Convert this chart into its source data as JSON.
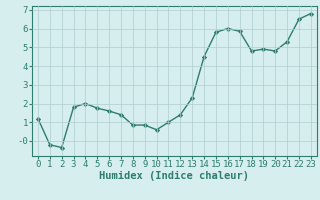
{
  "x": [
    0,
    1,
    2,
    3,
    4,
    5,
    6,
    7,
    8,
    9,
    10,
    11,
    12,
    13,
    14,
    15,
    16,
    17,
    18,
    19,
    20,
    21,
    22,
    23
  ],
  "y": [
    1.2,
    -0.2,
    -0.35,
    1.8,
    2.0,
    1.75,
    1.6,
    1.4,
    0.85,
    0.85,
    0.6,
    1.0,
    1.4,
    2.3,
    4.5,
    5.8,
    6.0,
    5.85,
    4.8,
    4.9,
    4.8,
    5.3,
    6.5,
    6.8
  ],
  "line_color": "#2e7d6e",
  "marker": "D",
  "markersize": 2.2,
  "bg_color": "#d6eeee",
  "grid_color": "#b0cccc",
  "xlabel": "Humidex (Indice chaleur)",
  "xlabel_fontsize": 7.5,
  "xlabel_fontweight": "bold",
  "tick_color": "#2e7d6e",
  "ylim": [
    -0.8,
    7.2
  ],
  "xlim": [
    -0.5,
    23.5
  ],
  "yticks": [
    0,
    1,
    2,
    3,
    4,
    5,
    6,
    7
  ],
  "ytick_labels": [
    "-0",
    "1",
    "2",
    "3",
    "4",
    "5",
    "6",
    "7"
  ],
  "xticks": [
    0,
    1,
    2,
    3,
    4,
    5,
    6,
    7,
    8,
    9,
    10,
    11,
    12,
    13,
    14,
    15,
    16,
    17,
    18,
    19,
    20,
    21,
    22,
    23
  ],
  "tick_fontsize": 6.5,
  "linewidth": 1.0
}
